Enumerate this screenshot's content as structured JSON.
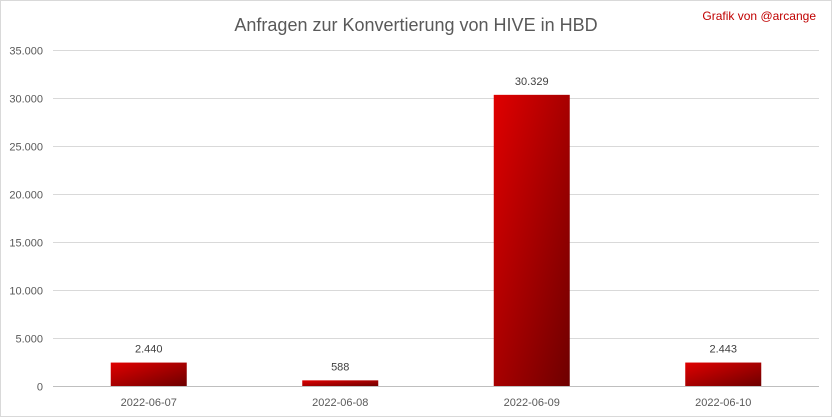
{
  "credit": "Grafik von @arcange",
  "colors": {
    "bar_light": "#e00000",
    "bar_dark": "#6e0000",
    "text": "#595959",
    "credit": "#c00000"
  },
  "chart_data": {
    "type": "bar",
    "title": "Anfragen zur Konvertierung von HIVE in HBD",
    "categories": [
      "2022-06-07",
      "2022-06-08",
      "2022-06-09",
      "2022-06-10"
    ],
    "values": [
      2440,
      588,
      30329,
      2443
    ],
    "value_labels": [
      "2.440",
      "588",
      "30.329",
      "2.443"
    ],
    "ylim": [
      0,
      35000
    ],
    "yticks": [
      0,
      5000,
      10000,
      15000,
      20000,
      25000,
      30000,
      35000
    ],
    "ytick_labels": [
      "0",
      "5.000",
      "10.000",
      "15.000",
      "20.000",
      "25.000",
      "30.000",
      "35.000"
    ],
    "grid": true,
    "legend": "none"
  }
}
